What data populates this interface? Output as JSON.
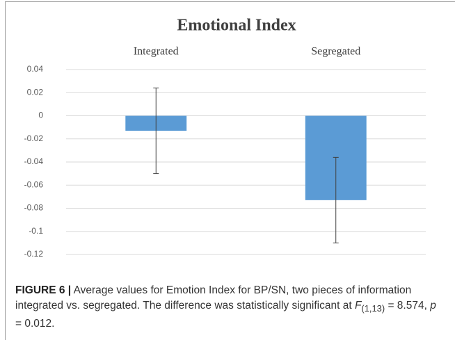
{
  "chart_data": {
    "type": "bar",
    "title": "Emotional Index",
    "categories": [
      "Integrated",
      "Segregated"
    ],
    "values": [
      -0.013,
      -0.073
    ],
    "errors": [
      0.037,
      0.037
    ],
    "color": "#5b9bd5",
    "ylim": [
      -0.12,
      0.04
    ],
    "yticks": [
      0.04,
      0.02,
      0,
      -0.02,
      -0.04,
      -0.06,
      -0.08,
      -0.1,
      -0.12
    ],
    "grid": true
  },
  "caption": {
    "label": "FIGURE 6 |",
    "text": " Average values for Emotion Index for BP/SN, two pieces of information integrated vs. segregated. The difference was statistically significant at ",
    "stat": "F",
    "subscript": "(1,13)",
    "middle": " = 8.574, ",
    "p": "p",
    "end": " = 0.012."
  }
}
